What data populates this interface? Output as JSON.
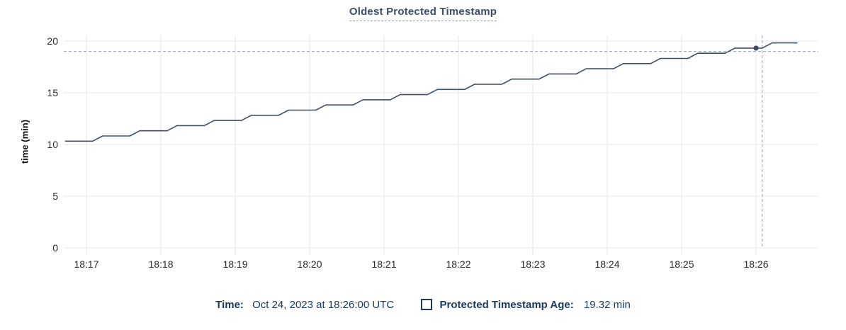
{
  "colors": {
    "line": "#3e4e66",
    "grid": "#ececec",
    "crosshair": "#a0b4c4",
    "title_text": "#3f4e66",
    "title_underline": "#90a0b5",
    "axis_text": "#2b2b2b",
    "legend_text": "#1b3a5c"
  },
  "chart_data": {
    "type": "line",
    "title": "Oldest Protected Timestamp",
    "ylabel": "time (min)",
    "xlabel": "",
    "ylim": [
      0,
      20
    ],
    "y_ticks": [
      0,
      5,
      10,
      15,
      20
    ],
    "x_ticks": [
      "18:17",
      "18:18",
      "18:19",
      "18:20",
      "18:21",
      "18:22",
      "18:23",
      "18:24",
      "18:25",
      "18:26"
    ],
    "grid": true,
    "legend_position": "bottom",
    "series": [
      {
        "name": "Protected Timestamp Age",
        "unit": "min",
        "points": [
          [
            "18:16:43",
            10.32
          ],
          [
            "18:17:05",
            10.32
          ],
          [
            "18:17:13",
            10.82
          ],
          [
            "18:17:35",
            10.82
          ],
          [
            "18:17:43",
            11.32
          ],
          [
            "18:18:05",
            11.32
          ],
          [
            "18:18:13",
            11.82
          ],
          [
            "18:18:35",
            11.82
          ],
          [
            "18:18:43",
            12.32
          ],
          [
            "18:19:05",
            12.32
          ],
          [
            "18:19:13",
            12.82
          ],
          [
            "18:19:35",
            12.82
          ],
          [
            "18:19:43",
            13.32
          ],
          [
            "18:20:05",
            13.32
          ],
          [
            "18:20:13",
            13.82
          ],
          [
            "18:20:35",
            13.82
          ],
          [
            "18:20:43",
            14.32
          ],
          [
            "18:21:05",
            14.32
          ],
          [
            "18:21:13",
            14.82
          ],
          [
            "18:21:35",
            14.82
          ],
          [
            "18:21:43",
            15.32
          ],
          [
            "18:22:05",
            15.32
          ],
          [
            "18:22:13",
            15.82
          ],
          [
            "18:22:35",
            15.82
          ],
          [
            "18:22:43",
            16.32
          ],
          [
            "18:23:05",
            16.32
          ],
          [
            "18:23:13",
            16.82
          ],
          [
            "18:23:35",
            16.82
          ],
          [
            "18:23:43",
            17.32
          ],
          [
            "18:24:05",
            17.32
          ],
          [
            "18:24:13",
            17.82
          ],
          [
            "18:24:35",
            17.82
          ],
          [
            "18:24:43",
            18.32
          ],
          [
            "18:25:05",
            18.32
          ],
          [
            "18:25:13",
            18.82
          ],
          [
            "18:25:35",
            18.82
          ],
          [
            "18:25:43",
            19.32
          ],
          [
            "18:26:05",
            19.32
          ],
          [
            "18:26:13",
            19.82
          ],
          [
            "18:26:33",
            19.82
          ]
        ]
      }
    ],
    "hover": {
      "time": "18:26:00",
      "value": 19.32,
      "crosshair_time": "18:26:05",
      "crosshair_value": 19.0
    }
  },
  "legend": {
    "time_label": "Time:",
    "time_value": "Oct 24, 2023 at 18:26:00 UTC",
    "series_label": "Protected Timestamp Age:",
    "series_value": "19.32 min"
  }
}
